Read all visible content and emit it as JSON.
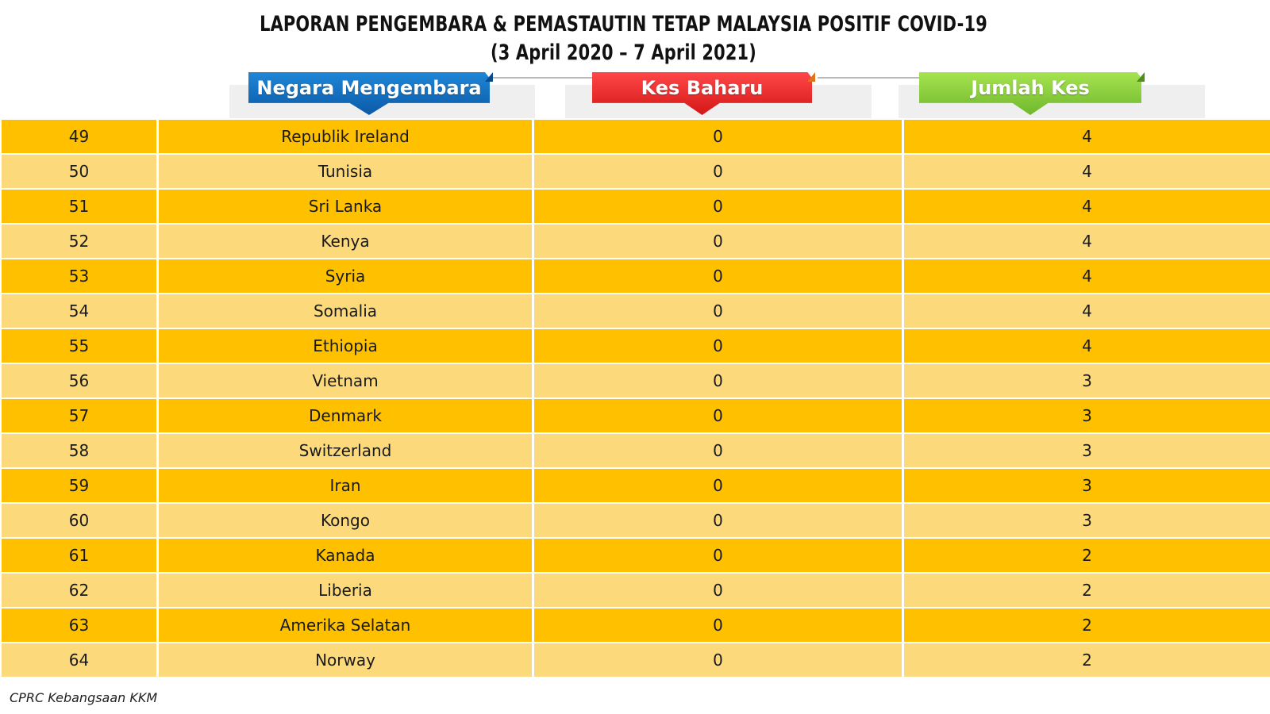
{
  "title": {
    "line1": "LAPORAN PENGEMBARA & PEMASTAUTIN TETAP MALAYSIA POSITIF COVID-19",
    "line2": "(3 April 2020 – 7 April 2021)"
  },
  "headers": {
    "country": "Negara Mengembara",
    "new_cases": "Kes Baharu",
    "total_cases": "Jumlah Kes"
  },
  "colors": {
    "row_dark": "#ffc000",
    "row_light": "#fcd97a",
    "header_blue": "#0b5aa8",
    "header_red": "#d41717",
    "header_green": "#6fb82d"
  },
  "rows": [
    {
      "no": "49",
      "country": "Republik Ireland",
      "new": "0",
      "total": "4"
    },
    {
      "no": "50",
      "country": "Tunisia",
      "new": "0",
      "total": "4"
    },
    {
      "no": "51",
      "country": "Sri Lanka",
      "new": "0",
      "total": "4"
    },
    {
      "no": "52",
      "country": "Kenya",
      "new": "0",
      "total": "4"
    },
    {
      "no": "53",
      "country": "Syria",
      "new": "0",
      "total": "4"
    },
    {
      "no": "54",
      "country": "Somalia",
      "new": "0",
      "total": "4"
    },
    {
      "no": "55",
      "country": "Ethiopia",
      "new": "0",
      "total": "4"
    },
    {
      "no": "56",
      "country": "Vietnam",
      "new": "0",
      "total": "3"
    },
    {
      "no": "57",
      "country": "Denmark",
      "new": "0",
      "total": "3"
    },
    {
      "no": "58",
      "country": "Switzerland",
      "new": "0",
      "total": "3"
    },
    {
      "no": "59",
      "country": "Iran",
      "new": "0",
      "total": "3"
    },
    {
      "no": "60",
      "country": "Kongo",
      "new": "0",
      "total": "3"
    },
    {
      "no": "61",
      "country": "Kanada",
      "new": "0",
      "total": "2"
    },
    {
      "no": "62",
      "country": "Liberia",
      "new": "0",
      "total": "2"
    },
    {
      "no": "63",
      "country": "Amerika Selatan",
      "new": "0",
      "total": "2"
    },
    {
      "no": "64",
      "country": "Norway",
      "new": "0",
      "total": "2"
    }
  ],
  "footer": "CPRC Kebangsaan KKM"
}
